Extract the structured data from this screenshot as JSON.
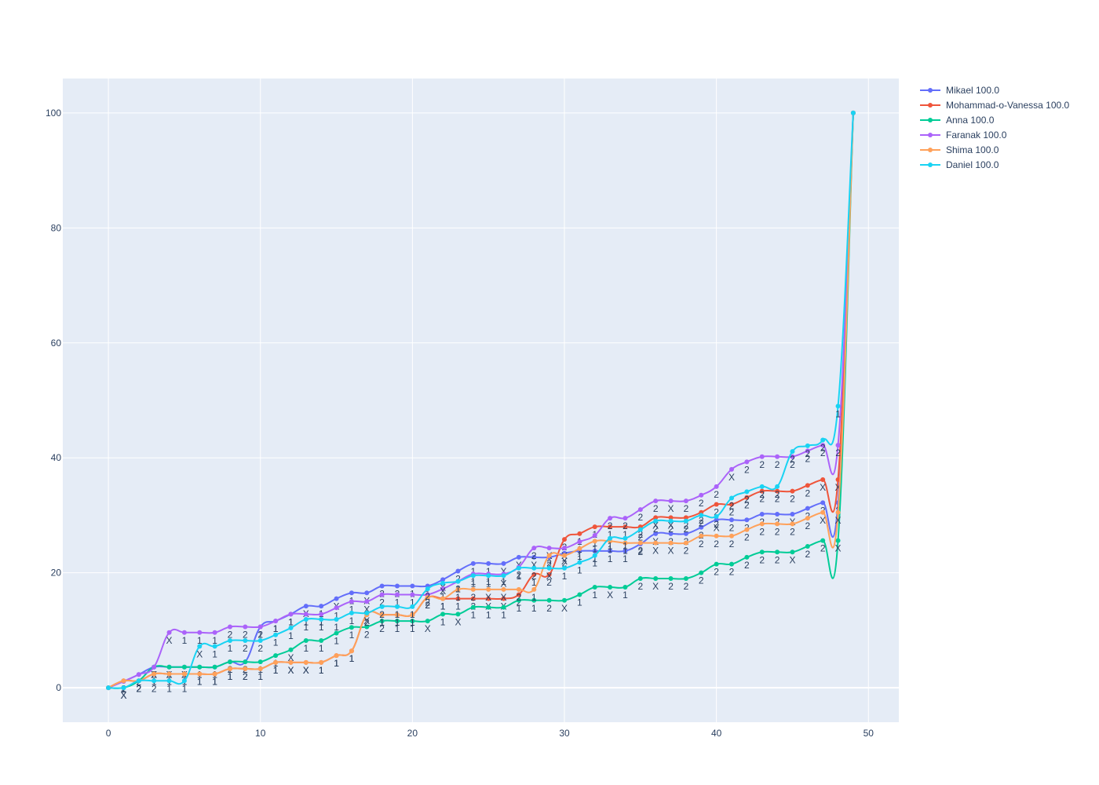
{
  "chart_data": {
    "type": "line",
    "title": "",
    "xlabel": "",
    "ylabel": "",
    "xlim": [
      -3,
      52
    ],
    "ylim": [
      -6,
      106
    ],
    "x_ticks": [
      0,
      10,
      20,
      30,
      40,
      50
    ],
    "y_ticks": [
      0,
      20,
      40,
      60,
      80,
      100
    ],
    "grid": true,
    "legend_position": "top-right",
    "plot_bg": "#e5ecf6",
    "series": [
      {
        "name": "Mikael 100.0",
        "color": "#636efa",
        "y": [
          0,
          1.1,
          2.3,
          3.6,
          3.6,
          3.6,
          3.6,
          3.6,
          4.5,
          4.5,
          10.6,
          11.6,
          12.8,
          14.2,
          14.2,
          15.5,
          16.5,
          16.5,
          17.7,
          17.7,
          17.7,
          17.7,
          18.8,
          20.3,
          21.6,
          21.6,
          21.6,
          22.7,
          22.7,
          22.7,
          23.4,
          23.8,
          23.8,
          23.8,
          23.8,
          25.0,
          26.8,
          26.8,
          26.8,
          27.9,
          29.2,
          29.2,
          29.2,
          30.2,
          30.2,
          30.2,
          31.2,
          32.2,
          32.2,
          100
        ],
        "labels": [
          "",
          "1",
          "2",
          "X",
          "X",
          "X",
          "1",
          "1",
          "1",
          "2",
          "2",
          "1",
          "1",
          "X",
          "1",
          "X",
          "1",
          "X",
          "2",
          "2",
          "1",
          "1",
          "X",
          "2",
          "1",
          "1",
          "X",
          "X",
          "X",
          "2",
          "X",
          "1",
          "1",
          "1",
          "1",
          "2",
          "X",
          "2",
          "2",
          "2",
          "X",
          "2",
          "2",
          "2",
          "2",
          "X",
          "2",
          "2",
          "2",
          ""
        ]
      },
      {
        "name": "Mohammad-o-Vanessa 100.0",
        "color": "#ef553b",
        "y": [
          0,
          1.2,
          1.2,
          2.4,
          2.4,
          2.4,
          2.4,
          2.4,
          3.3,
          3.3,
          3.3,
          4.4,
          4.4,
          4.4,
          4.4,
          5.6,
          6.4,
          12.7,
          12.7,
          12.7,
          12.7,
          15.7,
          15.5,
          15.5,
          15.5,
          15.5,
          15.5,
          16.2,
          19.7,
          19.7,
          25.8,
          26.8,
          28.0,
          28.0,
          28.0,
          28.0,
          29.6,
          29.6,
          29.6,
          30.5,
          31.9,
          31.9,
          33.1,
          34.2,
          34.2,
          34.2,
          35.2,
          36.2,
          36.2,
          100
        ],
        "labels": [
          "",
          "2",
          "2",
          "1",
          "1",
          "1",
          "1",
          "1",
          "1",
          "2",
          "1",
          "1",
          "X",
          "X",
          "1",
          "1",
          "1",
          "2",
          "1",
          "1",
          "1",
          "2",
          "1",
          "1",
          "2",
          "X",
          "X",
          "2",
          "1",
          "2",
          "2",
          "1",
          "1",
          "1",
          "1",
          "2",
          "X",
          "X",
          "2",
          "2",
          "2",
          "2",
          "2",
          "2",
          "2",
          "2",
          "2",
          "X",
          "X",
          ""
        ]
      },
      {
        "name": "Anna 100.0",
        "color": "#00cc96",
        "y": [
          0,
          0,
          1.2,
          3.6,
          3.6,
          3.6,
          3.6,
          3.6,
          4.5,
          4.5,
          4.5,
          5.6,
          6.6,
          8.2,
          8.2,
          9.5,
          10.5,
          10.6,
          11.6,
          11.6,
          11.6,
          11.6,
          12.8,
          12.8,
          14.0,
          14.0,
          14.0,
          15.2,
          15.2,
          15.2,
          15.2,
          16.2,
          17.5,
          17.5,
          17.5,
          19.0,
          19.0,
          19.0,
          19.0,
          20.0,
          21.5,
          21.5,
          22.7,
          23.6,
          23.6,
          23.6,
          24.6,
          25.6,
          25.6,
          100
        ],
        "labels": [
          "",
          "X",
          "2",
          "X",
          "1",
          "1",
          "1",
          "1",
          "2",
          "2",
          "1",
          "1",
          "X",
          "1",
          "1",
          "1",
          "1",
          "2",
          "2",
          "1",
          "1",
          "X",
          "1",
          "X",
          "1",
          "1",
          "1",
          "1",
          "1",
          "2",
          "X",
          "1",
          "1",
          "X",
          "1",
          "2",
          "X",
          "2",
          "2",
          "2",
          "2",
          "2",
          "2",
          "2",
          "2",
          "X",
          "2",
          "2",
          "X",
          ""
        ]
      },
      {
        "name": "Faranak 100.0",
        "color": "#ab63fa",
        "y": [
          0,
          1.1,
          2.3,
          3.6,
          9.6,
          9.6,
          9.6,
          9.6,
          10.6,
          10.6,
          10.6,
          11.6,
          12.8,
          12.8,
          12.8,
          13.9,
          15.0,
          15.0,
          16.2,
          16.2,
          16.2,
          16.2,
          17.2,
          18.5,
          19.8,
          19.8,
          19.8,
          21.0,
          24.3,
          24.3,
          24.3,
          25.4,
          26.5,
          29.5,
          29.5,
          31.0,
          32.5,
          32.5,
          32.5,
          33.5,
          35.0,
          38.0,
          39.3,
          40.2,
          40.2,
          40.2,
          41.2,
          42.2,
          42.2,
          100
        ],
        "labels": [
          "",
          "1",
          "2",
          "2",
          "X",
          "1",
          "1",
          "1",
          "2",
          "2",
          "1",
          "1",
          "1",
          "1",
          "1",
          "1",
          "1",
          "X",
          "2",
          "1",
          "1",
          "2",
          "1",
          "2",
          "1",
          "1",
          "1",
          "2",
          "2",
          "X",
          "X",
          "1",
          "1",
          "2",
          "2",
          "2",
          "2",
          "X",
          "2",
          "2",
          "2",
          "X",
          "2",
          "2",
          "2",
          "2",
          "2",
          "2",
          "2",
          ""
        ]
      },
      {
        "name": "Shima 100.0",
        "color": "#ffa15a",
        "y": [
          0,
          1.2,
          1.2,
          2.4,
          2.4,
          2.4,
          2.4,
          2.4,
          3.3,
          3.3,
          3.3,
          4.4,
          4.4,
          4.4,
          4.4,
          5.6,
          6.4,
          12.7,
          12.7,
          12.7,
          12.7,
          15.7,
          15.5,
          17.1,
          17.1,
          17.1,
          17.1,
          17.1,
          17.1,
          23.0,
          23.0,
          24.2,
          25.5,
          25.5,
          25.2,
          25.2,
          25.2,
          25.2,
          25.2,
          26.4,
          26.4,
          26.4,
          27.5,
          28.5,
          28.5,
          28.5,
          29.5,
          30.5,
          30.5,
          100
        ],
        "labels": [
          "",
          "2",
          "2",
          "1",
          "1",
          "1",
          "1",
          "1",
          "1",
          "2",
          "1",
          "1",
          "X",
          "X",
          "1",
          "1",
          "1",
          "2",
          "1",
          "1",
          "1",
          "2",
          "1",
          "1",
          "2",
          "X",
          "X",
          "2",
          "1",
          "2",
          "2",
          "1",
          "1",
          "1",
          "1",
          "2",
          "X",
          "X",
          "2",
          "2",
          "2",
          "2",
          "2",
          "2",
          "2",
          "2",
          "2",
          "X",
          "X",
          ""
        ]
      },
      {
        "name": "Daniel 100.0",
        "color": "#19d3f3",
        "y": [
          0,
          0,
          1.2,
          1.2,
          1.2,
          1.2,
          7.2,
          7.2,
          8.2,
          8.2,
          8.2,
          9.2,
          10.4,
          11.9,
          11.9,
          11.9,
          13.0,
          13.0,
          14.1,
          14.1,
          14.1,
          17.2,
          18.2,
          18.5,
          19.5,
          19.5,
          19.5,
          20.8,
          20.8,
          20.8,
          20.8,
          21.8,
          23.0,
          26.0,
          26.0,
          27.5,
          29.0,
          29.0,
          29.0,
          30.0,
          29.8,
          33.0,
          34.1,
          35.0,
          35.0,
          41.1,
          42.1,
          43.1,
          49.0,
          100
        ],
        "labels": [
          "",
          "X",
          "2",
          "2",
          "1",
          "1",
          "X",
          "1",
          "1",
          "2",
          "2",
          "1",
          "1",
          "1",
          "1",
          "1",
          "1",
          "X",
          "2",
          "1",
          "1",
          "2",
          "X",
          "1",
          "1",
          "1",
          "X",
          "1",
          "2",
          "X",
          "1",
          "1",
          "1",
          "1",
          "1",
          "2",
          "2",
          "2",
          "2",
          "2",
          "2",
          "2",
          "2",
          "2",
          "2",
          "2",
          "2",
          "2",
          "1",
          ""
        ]
      }
    ]
  }
}
